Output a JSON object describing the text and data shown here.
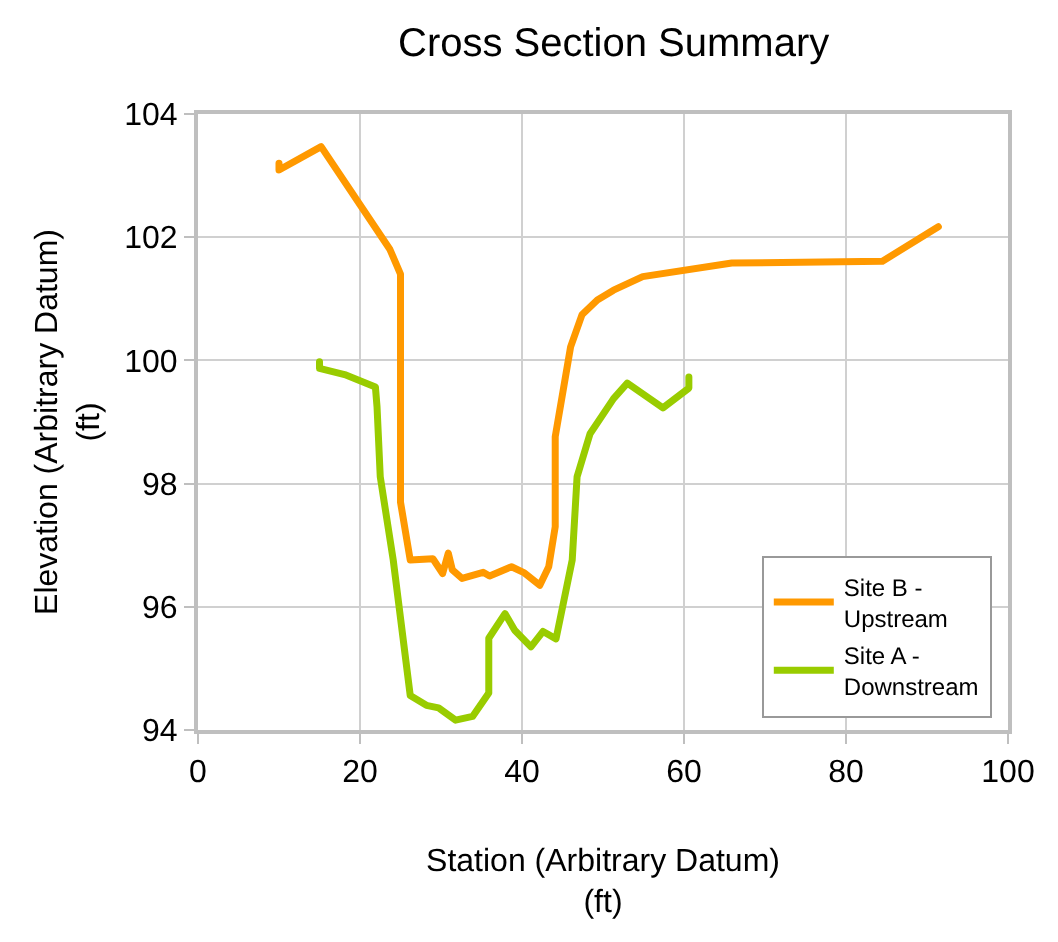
{
  "chart_data": {
    "type": "line",
    "title": "Cross Section Summary",
    "xlabel": "Station (Arbitrary Datum)\n(ft)",
    "ylabel": "Elevation (Arbitrary Datum)\n(ft)",
    "xlim": [
      0,
      100
    ],
    "xticks": [
      0,
      20,
      40,
      60,
      80,
      100
    ],
    "ylim": [
      94,
      104
    ],
    "yticks": [
      94,
      96,
      98,
      100,
      102,
      104
    ],
    "grid": true,
    "legend": "bottom right",
    "marker": "none",
    "line_style": "solid",
    "series": [
      {
        "name": "Site B -\nUpstream",
        "color": "#ff9900",
        "x": [
          10.0,
          10.0,
          15.2,
          23.7,
          25.0,
          25.0,
          26.2,
          29.0,
          30.2,
          30.9,
          31.4,
          32.6,
          35.2,
          36.0,
          38.7,
          40.3,
          42.2,
          43.3,
          44.1,
          44.1,
          46.0,
          47.4,
          49.3,
          51.3,
          54.9,
          65.9,
          84.5,
          91.4
        ],
        "values": [
          103.2,
          103.09,
          103.47,
          101.8,
          101.4,
          97.7,
          96.76,
          96.78,
          96.54,
          96.87,
          96.6,
          96.46,
          96.56,
          96.5,
          96.65,
          96.55,
          96.35,
          96.65,
          97.3,
          98.76,
          100.22,
          100.74,
          100.98,
          101.14,
          101.36,
          101.58,
          101.61,
          102.17
        ]
      },
      {
        "name": "Site A -\nDownstream",
        "color": "#99cc00",
        "x": [
          15.0,
          15.0,
          18.1,
          21.9,
          22.1,
          22.5,
          24.1,
          26.2,
          28.2,
          29.7,
          31.8,
          33.9,
          35.9,
          35.9,
          37.9,
          39.1,
          41.1,
          42.6,
          44.2,
          46.2,
          46.8,
          48.4,
          51.3,
          53.0,
          57.4,
          60.6,
          60.6
        ],
        "values": [
          99.98,
          99.87,
          99.77,
          99.57,
          99.25,
          98.11,
          96.76,
          94.56,
          94.4,
          94.36,
          94.16,
          94.22,
          94.6,
          95.49,
          95.89,
          95.62,
          95.35,
          95.6,
          95.48,
          96.76,
          98.11,
          98.81,
          99.38,
          99.63,
          99.23,
          99.55,
          99.73
        ]
      }
    ]
  }
}
